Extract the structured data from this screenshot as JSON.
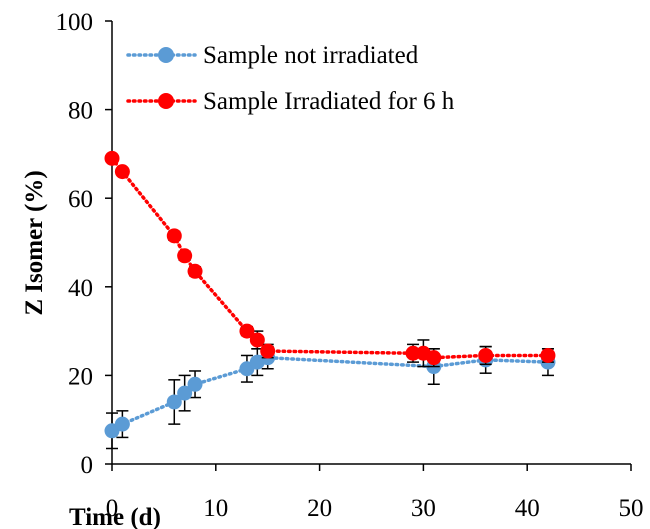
{
  "chart_data": {
    "type": "scatter",
    "title": "",
    "xlabel": "Time (d)",
    "ylabel": "Z Isomer (%)",
    "xlim": [
      0,
      50
    ],
    "ylim": [
      0,
      100
    ],
    "x_ticks": [
      "0",
      "10",
      "20",
      "30",
      "40",
      "50"
    ],
    "y_ticks": [
      "0",
      "20",
      "40",
      "60",
      "80",
      "100"
    ],
    "grid": false,
    "legend_position": "top-left",
    "line_style": "dotted",
    "series": [
      {
        "name": "Sample not irradiated",
        "color": "#5B9BD5",
        "x": [
          0,
          1,
          6,
          7,
          8,
          13,
          14,
          15,
          31,
          36,
          42
        ],
        "y": [
          7.5,
          9,
          14,
          16,
          18,
          21.5,
          23,
          24,
          22,
          23.5,
          23
        ],
        "err": [
          4,
          3,
          5,
          4,
          3,
          3,
          3,
          2.5,
          4,
          3,
          3
        ]
      },
      {
        "name": "Sample Irradiated for 6 h",
        "color": "#FF0000",
        "x": [
          0,
          1,
          6,
          7,
          8,
          13,
          14,
          15,
          29,
          30,
          31,
          36,
          42
        ],
        "y": [
          69,
          66,
          51.5,
          47,
          43.5,
          30,
          28,
          25.5,
          25,
          25,
          24,
          24.5,
          24.5
        ],
        "err": [
          0.5,
          0.5,
          1,
          1,
          1,
          1,
          2,
          1.5,
          2,
          3,
          2,
          2,
          1.5
        ]
      }
    ]
  }
}
